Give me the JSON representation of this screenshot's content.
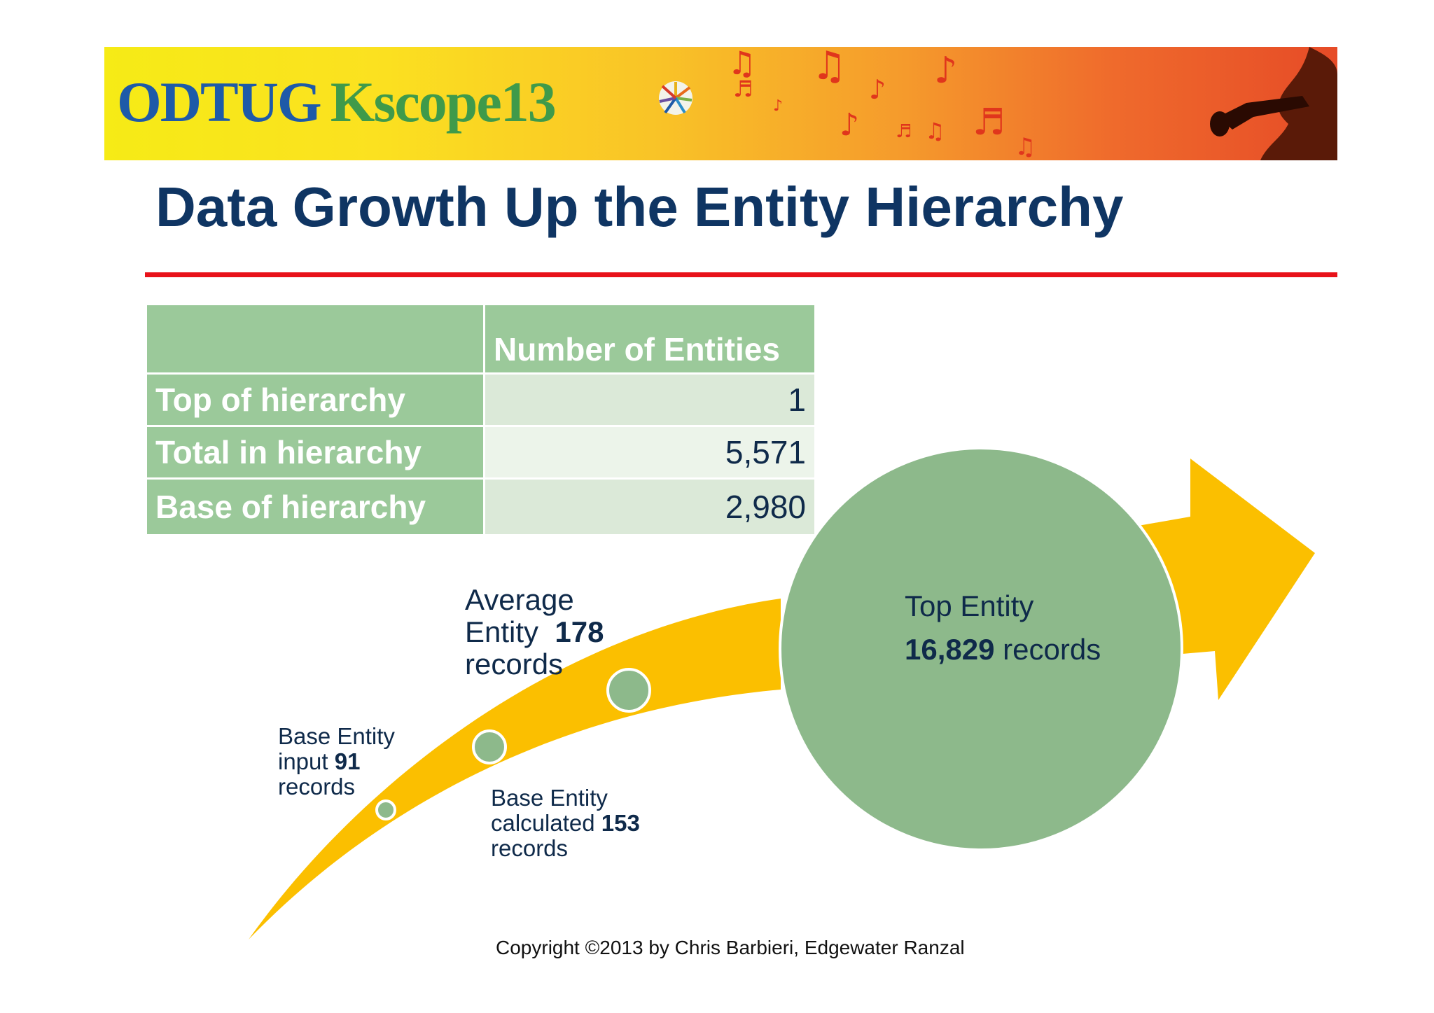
{
  "banner": {
    "logo_part1": "ODTUG",
    "logo_part2": "Kscope13"
  },
  "title": "Data Growth Up the Entity Hierarchy",
  "table": {
    "header": "Number of Entities",
    "rows": [
      {
        "label": "Top of hierarchy",
        "value": "1"
      },
      {
        "label": "Total in hierarchy",
        "value": "5,571"
      },
      {
        "label": "Base of hierarchy",
        "value": "2,980"
      }
    ]
  },
  "diagram": {
    "base_input": {
      "line1": "Base Entity",
      "line2_prefix": "input",
      "count": "91",
      "line3": "records"
    },
    "base_calculated": {
      "line1": "Base Entity",
      "line2_prefix": "calculated",
      "count": "153",
      "line3": "records"
    },
    "average": {
      "line1": "Average",
      "line2_prefix": "Entity",
      "count": "178",
      "line3": "records"
    },
    "top": {
      "line1": "Top Entity",
      "count": "16,829",
      "suffix": "records"
    }
  },
  "colors": {
    "title": "#0f3563",
    "accent_line": "#e8121a",
    "table_green": "#9bc99a",
    "arrow_yellow": "#fbbf00",
    "circle_green": "#8db98b"
  },
  "copyright": "Copyright ©2013 by Chris Barbieri, Edgewater Ranzal"
}
